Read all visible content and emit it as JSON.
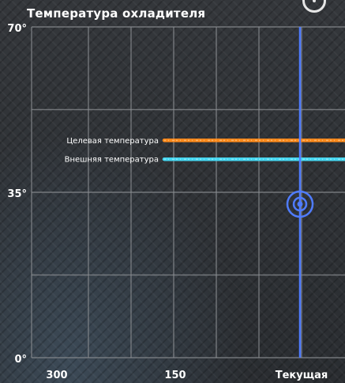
{
  "header": {
    "title": "Температура охладителя"
  },
  "chart_data": {
    "type": "line",
    "title": "Температура охладителя",
    "xlabel": "",
    "ylabel": "",
    "y_ticks": [
      "70°",
      "35°",
      "0°"
    ],
    "ylim": [
      0,
      70
    ],
    "x_ticks": [
      "300",
      "150",
      "Текущая"
    ],
    "x_direction": "reversed",
    "grid": true,
    "current_marker": {
      "value": 32.5,
      "color": "#4f7cff"
    },
    "series": [
      {
        "name": "Целевая температура",
        "value": 46,
        "color": "#ff8a1a"
      },
      {
        "name": "Внешняя температура",
        "value": 42,
        "color": "#45d6f0"
      }
    ]
  }
}
